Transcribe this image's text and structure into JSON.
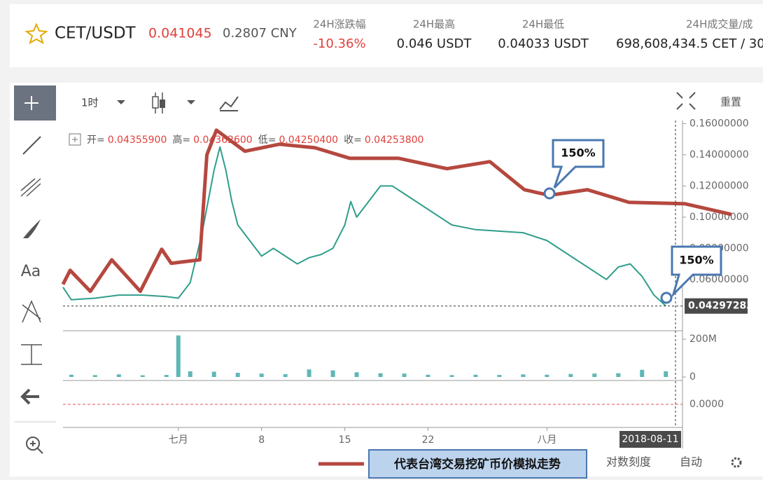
{
  "header": {
    "pair": "CET/USDT",
    "price": "0.041045",
    "cny": "0.2807 CNY",
    "stats": [
      {
        "label": "24H涨跌幅",
        "value": "-10.36%"
      },
      {
        "label": "24H最高",
        "value": "0.046 USDT"
      },
      {
        "label": "24H最低",
        "value": "0.04033 USDT"
      },
      {
        "label": "24H成交量/成",
        "value": "698,608,434.5 CET / 30"
      }
    ]
  },
  "toolbar": {
    "interval": "1时",
    "reset": "重置",
    "text_tool": "Aa"
  },
  "ohlc": {
    "open_label": "开=",
    "open": "0.04355900",
    "high_label": "高=",
    "high": "0.04362600",
    "low_label": "低=",
    "low": "0.04250400",
    "close_label": "收=",
    "close": "0.04253800"
  },
  "annotations": [
    "150%",
    "150%"
  ],
  "footer": {
    "log": "对数刻度",
    "auto": "自动"
  },
  "chart_data": {
    "type": "line",
    "xlim": [
      -8.7,
      43.4
    ],
    "ylim": [
      0.028,
      0.162
    ],
    "xticks": [
      {
        "value": 1,
        "label": "七月"
      },
      8,
      15,
      22,
      {
        "value": 32,
        "label": "八月"
      }
    ],
    "yticks": [
      {
        "value": 0.16,
        "label": "0.16000000"
      },
      {
        "value": 0.14,
        "label": "0.14000000"
      },
      {
        "value": 0.12,
        "label": "0.12000000"
      },
      {
        "value": 0.1,
        "label": "0.10000000"
      },
      {
        "value": 0.08,
        "label": "0.08000000"
      },
      {
        "value": 0.06,
        "label": "0.06000000"
      }
    ],
    "current_price": {
      "value": 0.04297283,
      "label": "0.04297283"
    },
    "crosshair_date": "2018-08-11",
    "series": [
      {
        "color": "#2f9e8a",
        "x": [
          -8.7,
          -8,
          -6,
          -4,
          -2,
          0,
          1,
          2,
          3,
          4,
          4.5,
          5,
          5.5,
          6,
          7,
          8,
          9,
          10,
          11,
          12,
          13,
          14,
          15,
          15.5,
          16,
          17,
          18,
          19,
          20,
          22,
          24,
          26,
          28,
          30,
          32,
          34,
          36,
          37,
          38,
          39,
          40,
          41,
          42
        ],
        "values": [
          0.055,
          0.047,
          0.048,
          0.05,
          0.05,
          0.049,
          0.048,
          0.058,
          0.09,
          0.13,
          0.145,
          0.13,
          0.11,
          0.095,
          0.085,
          0.075,
          0.08,
          0.075,
          0.07,
          0.074,
          0.076,
          0.08,
          0.095,
          0.11,
          0.1,
          0.11,
          0.12,
          0.12,
          0.115,
          0.105,
          0.095,
          0.092,
          0.091,
          0.09,
          0.085,
          0.075,
          0.065,
          0.06,
          0.068,
          0.07,
          0.062,
          0.05,
          0.043
        ]
      },
      {
        "name": "代表台湾交易挖矿币价模拟走势",
        "color": "#b5483f",
        "x": [
          -8.7,
          -8.1,
          -6.4,
          -4.6,
          -2.2,
          -0.4,
          0.4,
          2.8,
          3.4,
          4.2,
          6.6,
          9.5,
          12.5,
          15.4,
          19.5,
          23.6,
          27.2,
          30.1,
          32.2,
          35.4,
          38.9,
          43.6,
          47.5
        ],
        "values": [
          0.0569,
          0.0659,
          0.0524,
          0.0726,
          0.0524,
          0.0794,
          0.0704,
          0.0726,
          0.14,
          0.1558,
          0.1423,
          0.1468,
          0.1445,
          0.1378,
          0.1378,
          0.1311,
          0.1356,
          0.1176,
          0.114,
          0.1176,
          0.1095,
          0.1086,
          0.1018
        ]
      }
    ],
    "volume": {
      "ylim": [
        0,
        230
      ],
      "yticks": [
        0,
        {
          "value": 200,
          "label": "200M"
        }
      ],
      "x": [
        -8,
        -6,
        -4,
        -2,
        0,
        1,
        2,
        4,
        6,
        8,
        10,
        12,
        14,
        16,
        18,
        20,
        22,
        24,
        26,
        28,
        30,
        32,
        34,
        36,
        38,
        40,
        42
      ],
      "values": [
        12,
        10,
        14,
        9,
        11,
        220,
        30,
        28,
        22,
        18,
        15,
        40,
        35,
        25,
        20,
        18,
        12,
        10,
        12,
        11,
        14,
        12,
        16,
        18,
        20,
        38,
        30
      ]
    },
    "oscillator": {
      "ylim": [
        -0.002,
        0.002
      ],
      "yticks": [
        {
          "value": 0,
          "label": "0.0000"
        }
      ]
    }
  }
}
